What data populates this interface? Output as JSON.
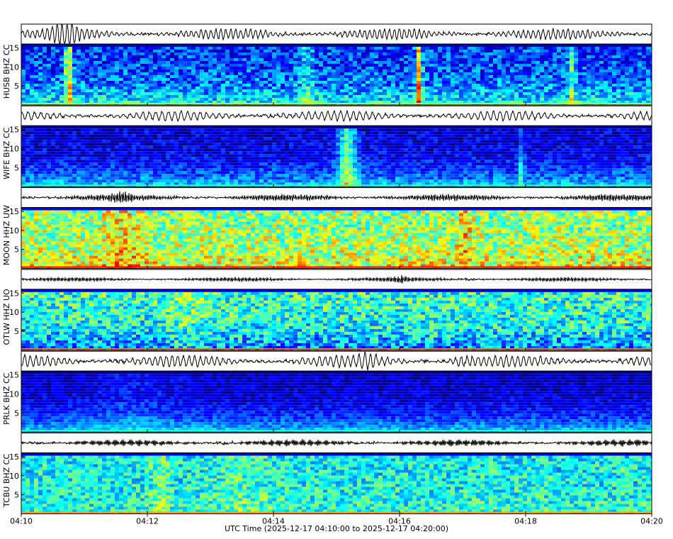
{
  "chart_data": {
    "type": "heatmap",
    "kind": "seismic-spectrogram-panel",
    "xlabel": "UTC Time (2025-12-17 04:10:00 to 2025-12-17 04:20:00)",
    "x_ticks": [
      "04:10",
      "04:12",
      "04:14",
      "04:16",
      "04:18",
      "04:20"
    ],
    "xlim": [
      "04:10",
      "04:20"
    ],
    "y_ticks": [
      5,
      10,
      15
    ],
    "ylim": [
      0,
      16
    ],
    "colormap": "jet",
    "grid": true,
    "channels": [
      {
        "label": "HUSB BHZ CC",
        "trace": {
          "amp": 0.55,
          "period": 7,
          "burst": [
            0.06,
            0.08
          ]
        },
        "spec": {
          "base": 0.18,
          "lowBoost": 0.25,
          "noise": 0.14,
          "bands": [
            {
              "x": 0.075,
              "w": 0.006,
              "a": 0.45
            },
            {
              "x": 0.628,
              "w": 0.005,
              "a": 0.5
            },
            {
              "x": 0.87,
              "w": 0.005,
              "a": 0.25
            },
            {
              "x": 0.45,
              "w": 0.012,
              "a": 0.15
            }
          ]
        }
      },
      {
        "label": "WIFE BHZ CC",
        "trace": {
          "amp": 0.5,
          "period": 9,
          "burst": [
            0.4,
            0.0
          ]
        },
        "spec": {
          "base": 0.08,
          "lowBoost": 0.28,
          "noise": 0.1,
          "bands": [
            {
              "x": 0.515,
              "w": 0.015,
              "a": 0.35
            },
            {
              "x": 0.79,
              "w": 0.004,
              "a": 0.2
            }
          ]
        }
      },
      {
        "label": "MOON HHZ UW",
        "trace": {
          "amp": 0.35,
          "period": 1.6,
          "burst": [
            0.16,
            0.0
          ]
        },
        "spec": {
          "base": 0.52,
          "lowBoost": 0.12,
          "noise": 0.18,
          "bands": [
            {
              "x": 0.16,
              "w": 0.03,
              "a": 0.12
            },
            {
              "x": 0.7,
              "w": 0.012,
              "a": 0.15
            }
          ]
        }
      },
      {
        "label": "OTLW HHZ UO",
        "trace": {
          "amp": 0.22,
          "period": 2.5,
          "burst": [
            0.6,
            0.71
          ]
        },
        "spec": {
          "base": 0.42,
          "lowBoost": -0.2,
          "noise": 0.17,
          "bands": [
            {
              "x": 0.27,
              "w": 0.04,
              "a": 0.08
            }
          ]
        }
      },
      {
        "label": "PRLK BHZ CC",
        "trace": {
          "amp": 0.6,
          "period": 8,
          "burst": [
            0.55,
            0.7
          ]
        },
        "spec": {
          "base": 0.06,
          "lowBoost": 0.3,
          "noise": 0.08,
          "bands": [
            {
              "x": 0.18,
              "w": 0.06,
              "a": 0.06
            }
          ]
        }
      },
      {
        "label": "TCBU BHZ CC",
        "trace": {
          "amp": 0.35,
          "period": 2.2,
          "burst": [
            0.32,
            0.55
          ]
        },
        "spec": {
          "base": 0.38,
          "lowBoost": 0.05,
          "noise": 0.14,
          "bands": [
            {
              "x": 0.22,
              "w": 0.015,
              "a": 0.1
            },
            {
              "x": 0.35,
              "w": 0.05,
              "a": 0.06
            }
          ]
        }
      }
    ]
  }
}
